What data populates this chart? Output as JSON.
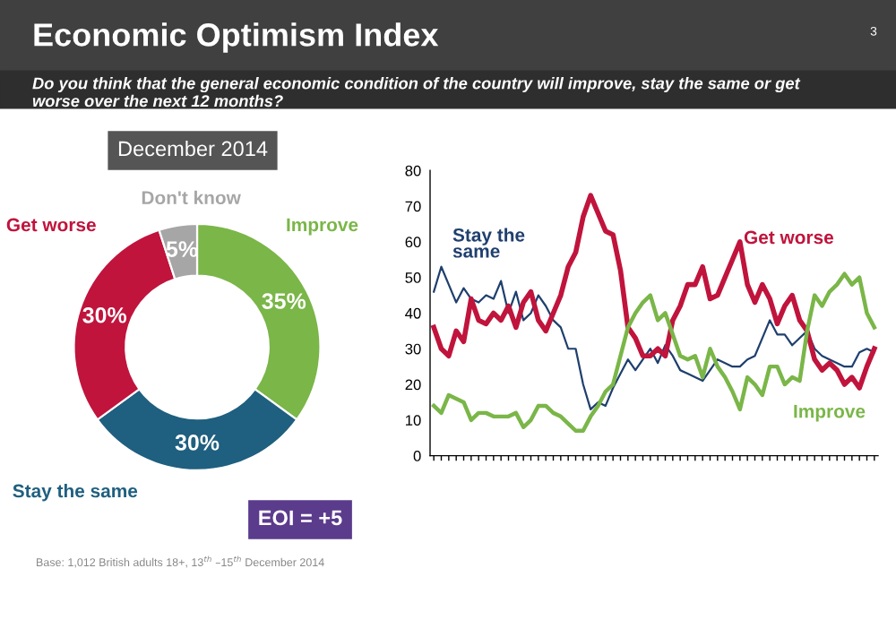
{
  "chart_data": [
    {
      "type": "donut",
      "title": "Economic Optimism Index",
      "subtitle": "Do you think that the general economic condition of the country will improve, stay the same or get worse over the next 12 months?",
      "categories": [
        "Improve",
        "Stay the same",
        "Get worse",
        "Don't know"
      ],
      "values": [
        35,
        30,
        30,
        5
      ],
      "colors": [
        "#7ab648",
        "#1f5f7f",
        "#c0143c",
        "#a6a6a6"
      ],
      "value_labels": [
        "35%",
        "30%",
        "30%",
        "5%"
      ],
      "annotations": [
        "December 2014",
        "EOI = +5",
        "Base: 1,012 British adults 18+, 13$^{th}$ –15$^{th}$ December 2014",
        "3"
      ]
    },
    {
      "type": "line",
      "categories": [
        null,
        null,
        null,
        null,
        null,
        null,
        null,
        null,
        null,
        null,
        null,
        null,
        null,
        null,
        null,
        null,
        null,
        null,
        null,
        null,
        null,
        null,
        null,
        null,
        null,
        null,
        null,
        null,
        null,
        null,
        null,
        null,
        null,
        null,
        null,
        null,
        null,
        null,
        null,
        null,
        null,
        null,
        null,
        null,
        null,
        null,
        null,
        null,
        null,
        null,
        null,
        null,
        null,
        null,
        null,
        null,
        null,
        null,
        null,
        null
      ],
      "ylim": [
        0,
        80
      ],
      "yticks": [
        0,
        10,
        20,
        30,
        40,
        50,
        60,
        70,
        80
      ],
      "grid": false,
      "tick_labels": "y",
      "series": [
        {
          "name": "Stay the same",
          "color": "#1f3f6e",
          "values": [
            46,
            53,
            48,
            43,
            47,
            44,
            43,
            45,
            44,
            49,
            40,
            46,
            38,
            40,
            45,
            42,
            38,
            36,
            30,
            30,
            20,
            13,
            15,
            14,
            19,
            23,
            27,
            24,
            27,
            30,
            26,
            31,
            28,
            24,
            23,
            22,
            21,
            24,
            27,
            26,
            25,
            25,
            27,
            28,
            33,
            38,
            34,
            34,
            31,
            33,
            35,
            30,
            28,
            27,
            26,
            25,
            25,
            29,
            30,
            29
          ]
        },
        {
          "name": "Get worse",
          "color": "#c0143c",
          "values": [
            36,
            30,
            28,
            35,
            32,
            44,
            38,
            37,
            40,
            38,
            42,
            36,
            43,
            46,
            38,
            35,
            40,
            45,
            53,
            57,
            67,
            73,
            68,
            63,
            62,
            52,
            36,
            33,
            28,
            28,
            30,
            28,
            38,
            42,
            48,
            48,
            53,
            44,
            45,
            50,
            55,
            60,
            48,
            43,
            48,
            44,
            37,
            42,
            45,
            38,
            35,
            27,
            24,
            26,
            24,
            20,
            22,
            19,
            25,
            30
          ]
        },
        {
          "name": "Improve",
          "color": "#7ab648",
          "values": [
            14,
            12,
            17,
            16,
            15,
            10,
            12,
            12,
            11,
            11,
            11,
            12,
            8,
            10,
            14,
            14,
            12,
            11,
            9,
            7,
            7,
            11,
            14,
            18,
            20,
            28,
            36,
            40,
            43,
            45,
            38,
            40,
            34,
            28,
            27,
            28,
            22,
            30,
            25,
            22,
            18,
            13,
            22,
            20,
            17,
            25,
            25,
            20,
            22,
            21,
            35,
            45,
            42,
            46,
            48,
            51,
            48,
            50,
            40,
            36
          ]
        }
      ]
    }
  ]
}
